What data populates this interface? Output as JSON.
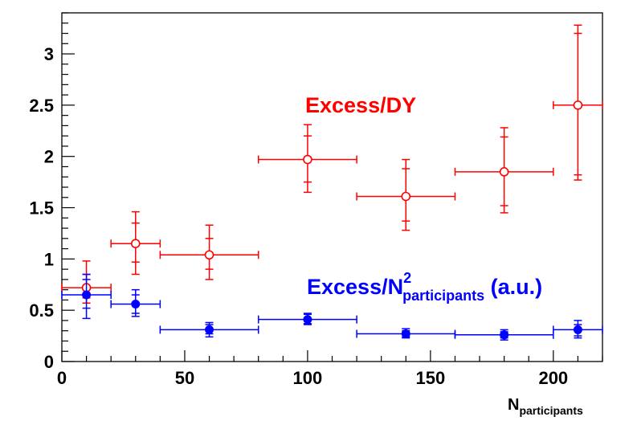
{
  "chart_data": {
    "type": "scatter",
    "title": "",
    "xlabel": {
      "main": "N",
      "sub": "participants"
    },
    "ylabel": "",
    "xlim": [
      0,
      220
    ],
    "ylim": [
      0,
      3.4
    ],
    "x_ticks": [
      0,
      50,
      100,
      150,
      200
    ],
    "y_ticks": [
      0,
      0.5,
      1,
      1.5,
      2,
      2.5,
      3
    ],
    "x_tick_labels": [
      "0",
      "50",
      "100",
      "150",
      "200"
    ],
    "y_tick_labels": [
      "0",
      "0.5",
      "1",
      "1.5",
      "2",
      "2.5",
      "3"
    ],
    "grid": false,
    "series": [
      {
        "name": "Excess/DY",
        "color": "#ff0000",
        "marker": "open-circle",
        "points": [
          {
            "x": 10,
            "xlo": 0,
            "xhi": 20,
            "y": 0.72,
            "stat": [
              0.62,
              0.85
            ],
            "total": [
              0.57,
              0.98
            ]
          },
          {
            "x": 30,
            "xlo": 20,
            "xhi": 40,
            "y": 1.15,
            "stat": [
              0.97,
              1.35
            ],
            "total": [
              0.85,
              1.46
            ]
          },
          {
            "x": 60,
            "xlo": 40,
            "xhi": 80,
            "y": 1.04,
            "stat": [
              0.9,
              1.2
            ],
            "total": [
              0.8,
              1.33
            ]
          },
          {
            "x": 100,
            "xlo": 80,
            "xhi": 120,
            "y": 1.97,
            "stat": [
              1.75,
              2.2
            ],
            "total": [
              1.65,
              2.31
            ]
          },
          {
            "x": 140,
            "xlo": 120,
            "xhi": 160,
            "y": 1.61,
            "stat": [
              1.37,
              1.88
            ],
            "total": [
              1.28,
              1.97
            ]
          },
          {
            "x": 180,
            "xlo": 160,
            "xhi": 200,
            "y": 1.85,
            "stat": [
              1.52,
              2.19
            ],
            "total": [
              1.45,
              2.28
            ]
          },
          {
            "x": 210,
            "xlo": 200,
            "xhi": 220,
            "y": 2.5,
            "stat": [
              1.82,
              3.2
            ],
            "total": [
              1.77,
              3.28
            ]
          }
        ]
      },
      {
        "name": "Excess/N2participants (a.u.)",
        "color": "#0000ff",
        "marker": "filled-circle",
        "points": [
          {
            "x": 10,
            "xlo": 0,
            "xhi": 20,
            "y": 0.65,
            "stat": [
              0.52,
              0.8
            ],
            "total": [
              0.42,
              0.85
            ]
          },
          {
            "x": 30,
            "xlo": 20,
            "xhi": 40,
            "y": 0.56,
            "stat": [
              0.47,
              0.65
            ],
            "total": [
              0.44,
              0.7
            ]
          },
          {
            "x": 60,
            "xlo": 40,
            "xhi": 80,
            "y": 0.31,
            "stat": [
              0.27,
              0.36
            ],
            "total": [
              0.24,
              0.38
            ]
          },
          {
            "x": 100,
            "xlo": 80,
            "xhi": 120,
            "y": 0.41,
            "stat": [
              0.37,
              0.46
            ],
            "total": [
              0.36,
              0.47
            ]
          },
          {
            "x": 140,
            "xlo": 120,
            "xhi": 160,
            "y": 0.27,
            "stat": [
              0.24,
              0.3
            ],
            "total": [
              0.23,
              0.32
            ]
          },
          {
            "x": 180,
            "xlo": 160,
            "xhi": 200,
            "y": 0.26,
            "stat": [
              0.23,
              0.29
            ],
            "total": [
              0.21,
              0.31
            ]
          },
          {
            "x": 210,
            "xlo": 200,
            "xhi": 220,
            "y": 0.31,
            "stat": [
              0.25,
              0.36
            ],
            "total": [
              0.23,
              0.4
            ]
          }
        ]
      }
    ],
    "annotations": {
      "red": {
        "text": "Excess/DY",
        "color": "#ff0000"
      },
      "blue": {
        "prefix": "Excess/N",
        "sup": "2",
        "sub": "participants",
        "suffix": " (a.u.)",
        "color": "#0000ff"
      }
    }
  }
}
